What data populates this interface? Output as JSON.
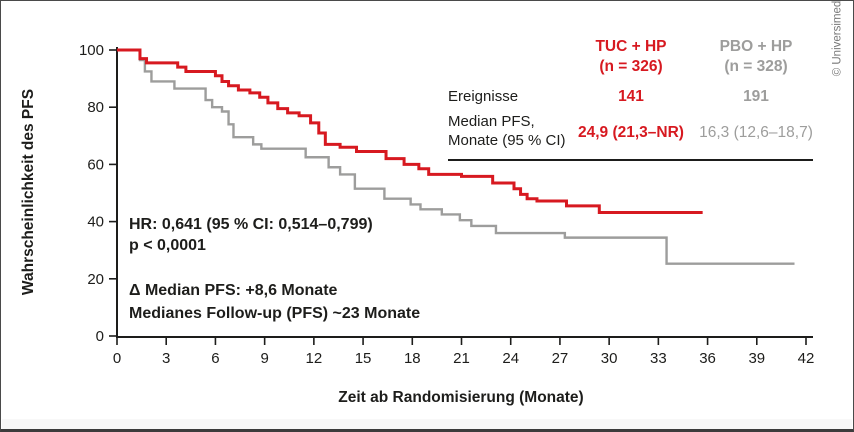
{
  "copyright": "© Universimed",
  "axes": {
    "y_label": "Wahrscheinlichkeit des PFS",
    "x_label": "Zeit ab Randomisierung (Monate)"
  },
  "annotations": {
    "hr": "HR: 0,641 (95 % CI: 0,514–0,799)",
    "p": "p < 0,0001",
    "delta": "Δ Median PFS: +8,6 Monate",
    "followup": "Medianes Follow-up (PFS) ~23 Monate"
  },
  "table": {
    "col1": {
      "name": "TUC + HP",
      "n": "(n = 326)"
    },
    "col2": {
      "name": "PBO + HP",
      "n": "(n = 328)"
    },
    "row_events": {
      "label": "Ereignisse",
      "v1": "141",
      "v2": "191"
    },
    "row_median": {
      "label_line1": "Median PFS,",
      "label_line2": "Monate (95 % CI)",
      "v1": "24,9 (21,3–NR)",
      "v2": "16,3 (12,6–18,7)"
    }
  },
  "colors": {
    "red": "#d71920",
    "gray": "#9d9d9c",
    "axis": "#1d1d1b"
  },
  "chart_data": {
    "type": "line",
    "subtype": "kaplan-meier-step",
    "title": "",
    "xlabel": "Zeit ab Randomisierung (Monate)",
    "ylabel": "Wahrscheinlichkeit des PFS",
    "xlim": [
      0,
      42
    ],
    "ylim": [
      0,
      100
    ],
    "x_ticks": [
      0,
      3,
      6,
      9,
      12,
      15,
      18,
      21,
      24,
      27,
      30,
      33,
      36,
      39,
      42
    ],
    "y_ticks": [
      0,
      20,
      40,
      60,
      80,
      100
    ],
    "grid": false,
    "legend_position": "table-top-right",
    "series": [
      {
        "name": "TUC + HP",
        "color": "#d71920",
        "width": 3,
        "median_pfs_months": 24.9,
        "events": 141,
        "n": 326,
        "points": [
          [
            0,
            100
          ],
          [
            1.4,
            97
          ],
          [
            1.8,
            95.5
          ],
          [
            3.7,
            94
          ],
          [
            4.2,
            92.5
          ],
          [
            6.0,
            91
          ],
          [
            6.4,
            89
          ],
          [
            6.8,
            87.5
          ],
          [
            7.4,
            86
          ],
          [
            8.1,
            85
          ],
          [
            8.7,
            83.5
          ],
          [
            9.2,
            81.5
          ],
          [
            9.8,
            79.5
          ],
          [
            10.4,
            78
          ],
          [
            11.1,
            77
          ],
          [
            11.8,
            74.5
          ],
          [
            12.3,
            71
          ],
          [
            12.7,
            67
          ],
          [
            13.6,
            66
          ],
          [
            14.6,
            64.5
          ],
          [
            16.4,
            62
          ],
          [
            17.5,
            60
          ],
          [
            18.4,
            58.5
          ],
          [
            19.0,
            56.5
          ],
          [
            21.0,
            55.8
          ],
          [
            22.9,
            53.5
          ],
          [
            24.2,
            51.5
          ],
          [
            24.6,
            49.5
          ],
          [
            25.0,
            48
          ],
          [
            25.6,
            47.2
          ],
          [
            27.4,
            45.5
          ],
          [
            29.4,
            43.2
          ]
        ],
        "end_x": 35.7
      },
      {
        "name": "PBO + HP",
        "color": "#9d9d9c",
        "width": 2.4,
        "median_pfs_months": 16.3,
        "events": 191,
        "n": 328,
        "points": [
          [
            0,
            100
          ],
          [
            1.4,
            96.5
          ],
          [
            1.7,
            92.5
          ],
          [
            2.1,
            89
          ],
          [
            3.5,
            86.5
          ],
          [
            5.4,
            82.5
          ],
          [
            5.8,
            80
          ],
          [
            6.4,
            78.5
          ],
          [
            6.8,
            74
          ],
          [
            7.1,
            69.5
          ],
          [
            8.3,
            67
          ],
          [
            8.8,
            65.5
          ],
          [
            11.5,
            62.5
          ],
          [
            12.9,
            59
          ],
          [
            13.6,
            56.5
          ],
          [
            14.5,
            51.5
          ],
          [
            16.3,
            48
          ],
          [
            17.9,
            46
          ],
          [
            18.5,
            44.3
          ],
          [
            19.8,
            42.5
          ],
          [
            20.9,
            40.5
          ],
          [
            21.6,
            38.5
          ],
          [
            23.1,
            36
          ],
          [
            27.3,
            34.4
          ],
          [
            33.5,
            25.3
          ]
        ],
        "end_x": 41.3
      }
    ]
  }
}
